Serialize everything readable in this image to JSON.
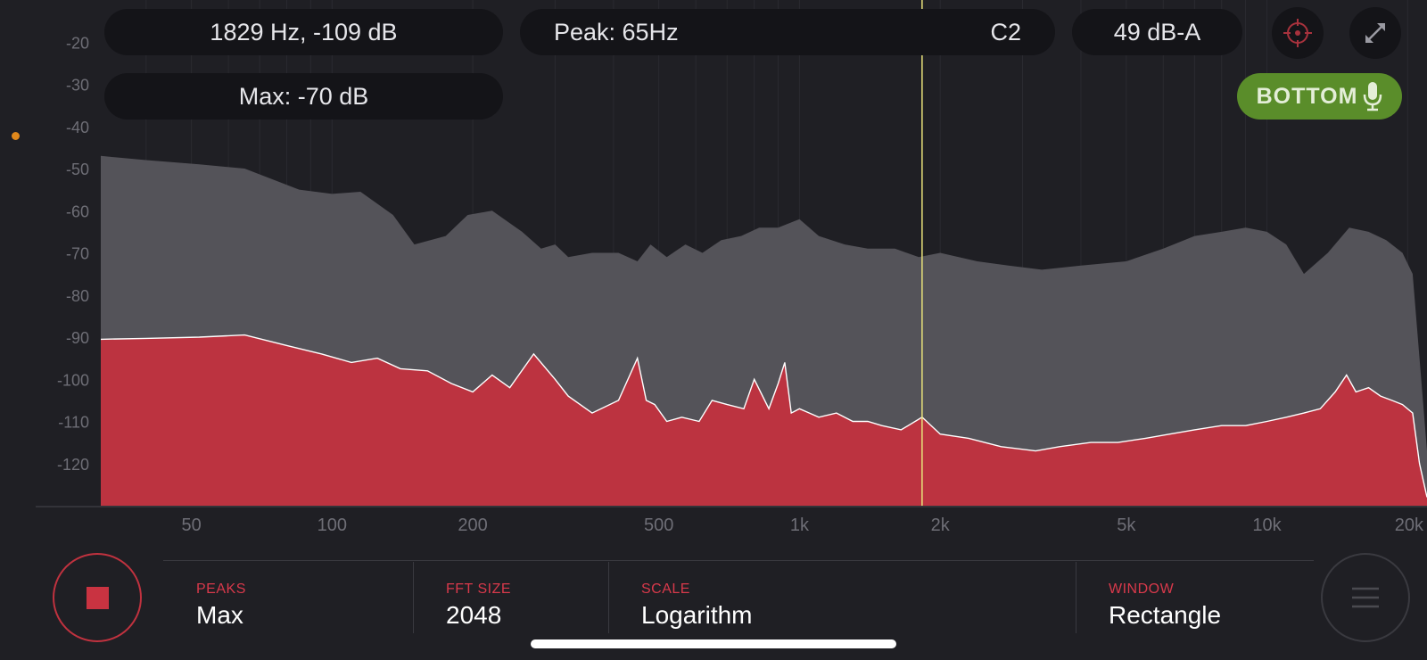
{
  "readouts": {
    "cursor": "1829 Hz, -109 dB",
    "max": "Max: -70 dB",
    "peak": "Peak: 65Hz",
    "note": "C2",
    "level": "49 dB-A"
  },
  "mic_button": {
    "label": "BOTTOM",
    "icon": "microphone-icon"
  },
  "icons": {
    "crosshair": "crosshair-icon",
    "expand": "expand-icon",
    "stop": "stop-icon",
    "menu": "menu-icon"
  },
  "colors": {
    "background": "#1f1f24",
    "peak_fill": "#545359",
    "current_fill": "#bc3340",
    "cursor_line": "#e8e27a",
    "mic_button": "#5a8d2a",
    "accent_label": "#d8394b",
    "status_dot": "#e0881c"
  },
  "settings": [
    {
      "label": "PEAKS",
      "value": "Max"
    },
    {
      "label": "FFT SIZE",
      "value": "2048"
    },
    {
      "label": "SCALE",
      "value": "Logarithm"
    },
    {
      "label": "WINDOW",
      "value": "Rectangle"
    }
  ],
  "chart_data": {
    "type": "area",
    "x_scale": "log",
    "xlim": [
      32,
      22000
    ],
    "ylim": [
      -130,
      -10
    ],
    "x_ticks": [
      {
        "v": 50,
        "label": "50"
      },
      {
        "v": 100,
        "label": "100"
      },
      {
        "v": 200,
        "label": "200"
      },
      {
        "v": 500,
        "label": "500"
      },
      {
        "v": 1000,
        "label": "1k"
      },
      {
        "v": 2000,
        "label": "2k"
      },
      {
        "v": 5000,
        "label": "5k"
      },
      {
        "v": 10000,
        "label": "10k"
      },
      {
        "v": 20000,
        "label": "20k"
      }
    ],
    "y_ticks": [
      -20,
      -30,
      -40,
      -50,
      -60,
      -70,
      -80,
      -90,
      -100,
      -110,
      -120
    ],
    "cursor_hz": 1829,
    "series": [
      {
        "role": "peak",
        "x": [
          32,
          40,
          52,
          65,
          85,
          100,
          115,
          135,
          150,
          175,
          195,
          220,
          255,
          280,
          300,
          320,
          360,
          410,
          450,
          480,
          520,
          570,
          620,
          680,
          750,
          820,
          900,
          1000,
          1100,
          1250,
          1400,
          1600,
          1800,
          2000,
          2400,
          2800,
          3300,
          4000,
          5000,
          6000,
          7000,
          8000,
          9000,
          10000,
          11000,
          12000,
          13500,
          15000,
          16500,
          18000,
          19500,
          20500,
          21200,
          22000
        ],
        "y": [
          -47,
          -48,
          -49,
          -50,
          -55,
          -56,
          -55.5,
          -61,
          -68,
          -66,
          -61,
          -60,
          -65,
          -69,
          -68,
          -71,
          -70,
          -70,
          -72,
          -68,
          -71,
          -68,
          -70,
          -67,
          -66,
          -64,
          -64,
          -62,
          -66,
          -68,
          -69,
          -69,
          -71,
          -70,
          -72,
          -73,
          -74,
          -73,
          -72,
          -69,
          -66,
          -65,
          -64,
          -65,
          -68,
          -75,
          -70,
          -64,
          -65,
          -67,
          -70,
          -75,
          -95,
          -117
        ]
      },
      {
        "role": "current",
        "x": [
          32,
          40,
          52,
          65,
          80,
          95,
          110,
          125,
          140,
          160,
          180,
          200,
          220,
          240,
          270,
          300,
          320,
          360,
          410,
          450,
          470,
          490,
          520,
          560,
          610,
          650,
          700,
          760,
          800,
          860,
          900,
          930,
          960,
          1000,
          1050,
          1100,
          1200,
          1300,
          1400,
          1500,
          1650,
          1829,
          2000,
          2300,
          2700,
          3200,
          3600,
          4200,
          4800,
          5500,
          6200,
          7000,
          8000,
          9000,
          10000,
          11000,
          12000,
          13000,
          14000,
          14800,
          15500,
          16500,
          17500,
          18500,
          19500,
          20500,
          21200,
          22000
        ],
        "y": [
          -90.5,
          -90.3,
          -90,
          -89.5,
          -92,
          -94,
          -96,
          -95,
          -97.5,
          -98,
          -101,
          -103,
          -99,
          -102,
          -94,
          -100,
          -104,
          -108,
          -105,
          -95,
          -105,
          -106,
          -110,
          -109,
          -110,
          -105,
          -106,
          -107,
          -100,
          -107,
          -101,
          -96,
          -108,
          -107,
          -108,
          -109,
          -108,
          -110,
          -110,
          -111,
          -112,
          -109,
          -113,
          -114,
          -116,
          -117,
          -116,
          -115,
          -115,
          -114,
          -113,
          -112,
          -111,
          -111,
          -110,
          -109,
          -108,
          -107,
          -103,
          -99,
          -103,
          -102,
          -104,
          -105,
          -106,
          -108,
          -120,
          -128
        ]
      }
    ]
  }
}
